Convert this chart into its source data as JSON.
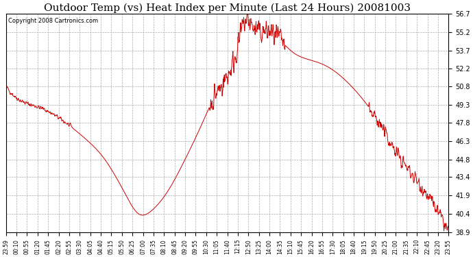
{
  "title": "Outdoor Temp (vs) Heat Index per Minute (Last 24 Hours) 20081003",
  "copyright": "Copyright 2008 Cartronics.com",
  "line_color": "#cc0000",
  "background_color": "#ffffff",
  "grid_color": "#aaaaaa",
  "ylim": [
    38.9,
    56.7
  ],
  "yticks": [
    38.9,
    40.4,
    41.9,
    43.4,
    44.8,
    46.3,
    47.8,
    49.3,
    50.8,
    52.2,
    53.7,
    55.2,
    56.7
  ],
  "xtick_labels": [
    "23:59",
    "00:10",
    "00:55",
    "01:20",
    "01:45",
    "02:20",
    "02:55",
    "03:30",
    "04:05",
    "04:40",
    "05:15",
    "05:50",
    "06:25",
    "07:00",
    "07:35",
    "08:10",
    "08:45",
    "09:20",
    "09:55",
    "10:30",
    "11:05",
    "11:40",
    "12:15",
    "12:50",
    "13:25",
    "14:00",
    "14:35",
    "15:10",
    "15:45",
    "16:20",
    "16:55",
    "17:30",
    "18:05",
    "18:40",
    "19:15",
    "19:50",
    "20:25",
    "21:00",
    "21:35",
    "22:10",
    "22:45",
    "23:20",
    "23:55"
  ],
  "title_fontsize": 11,
  "tick_fontsize": 7,
  "xtick_fontsize": 5.5,
  "copyright_fontsize": 6
}
